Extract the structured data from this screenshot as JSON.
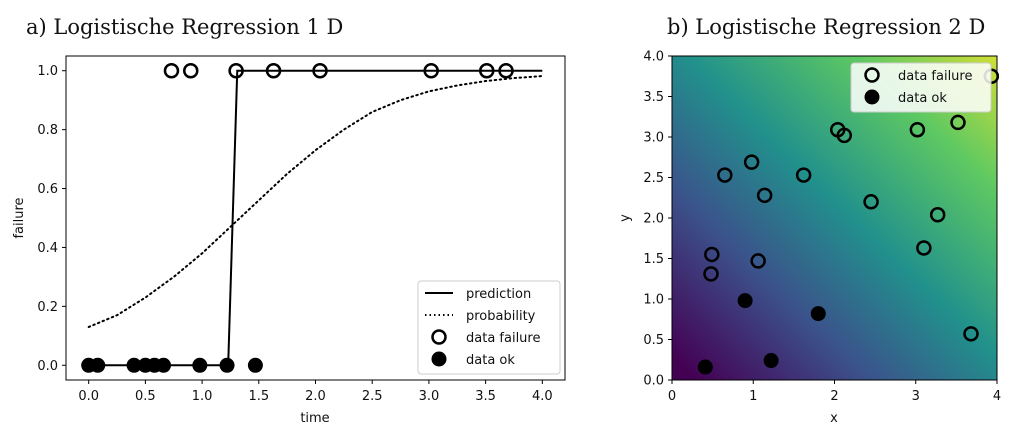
{
  "chart_data": [
    {
      "type": "scatter",
      "title": "a) Logistische Regression 1 D",
      "xlabel": "time",
      "ylabel": "failure",
      "xlim": [
        -0.2,
        4.2
      ],
      "ylim": [
        -0.05,
        1.05
      ],
      "xticks": [
        "0.0",
        "0.5",
        "1.0",
        "1.5",
        "2.0",
        "2.5",
        "3.0",
        "3.5",
        "4.0"
      ],
      "yticks": [
        "0.0",
        "0.2",
        "0.4",
        "0.6",
        "0.8",
        "1.0"
      ],
      "grid": false,
      "legend_position": "lower-right",
      "legend": [
        "prediction",
        "probability",
        "data failure",
        "data ok"
      ],
      "series": [
        {
          "name": "prediction",
          "style": "line-solid",
          "x": [
            0.0,
            1.23,
            1.31,
            4.0
          ],
          "y": [
            0.0,
            0.0,
            1.0,
            1.0
          ]
        },
        {
          "name": "probability",
          "style": "line-dotted",
          "x": [
            0.0,
            0.25,
            0.5,
            0.75,
            1.0,
            1.25,
            1.5,
            1.75,
            2.0,
            2.25,
            2.5,
            2.75,
            3.0,
            3.25,
            3.5,
            3.75,
            4.0
          ],
          "y": [
            0.13,
            0.17,
            0.23,
            0.3,
            0.38,
            0.47,
            0.56,
            0.65,
            0.73,
            0.8,
            0.86,
            0.9,
            0.93,
            0.95,
            0.965,
            0.975,
            0.982
          ]
        },
        {
          "name": "data failure",
          "style": "marker-open",
          "x": [
            0.73,
            0.9,
            1.3,
            1.63,
            2.04,
            3.02,
            3.51,
            3.68
          ],
          "y": [
            1,
            1,
            1,
            1,
            1,
            1,
            1,
            1
          ]
        },
        {
          "name": "data ok",
          "style": "marker-filled",
          "x": [
            0.0,
            0.08,
            0.4,
            0.5,
            0.58,
            0.66,
            0.98,
            1.22,
            1.47
          ],
          "y": [
            0,
            0,
            0,
            0,
            0,
            0,
            0,
            0,
            0
          ]
        }
      ]
    },
    {
      "type": "scatter",
      "title": "b) Logistische Regression 2 D",
      "xlabel": "x",
      "ylabel": "y",
      "xlim": [
        0,
        4
      ],
      "ylim": [
        0,
        4
      ],
      "xticks": [
        "0",
        "1",
        "2",
        "3",
        "4"
      ],
      "yticks": [
        "0.0",
        "0.5",
        "1.0",
        "1.5",
        "2.0",
        "2.5",
        "3.0",
        "3.5",
        "4.0"
      ],
      "grid": false,
      "background": "viridis probability heatmap",
      "colormap": [
        "#440154",
        "#3b528b",
        "#21918c",
        "#5ec962",
        "#fde725"
      ],
      "legend_position": "top-right",
      "legend": [
        "data failure",
        "data ok"
      ],
      "series": [
        {
          "name": "data failure",
          "style": "marker-open",
          "x": [
            0.48,
            0.49,
            0.65,
            0.98,
            1.06,
            1.14,
            1.62,
            2.04,
            2.12,
            2.45,
            3.02,
            3.1,
            3.27,
            3.52,
            3.68,
            3.93
          ],
          "y": [
            1.31,
            1.55,
            2.53,
            2.69,
            1.47,
            2.28,
            2.53,
            3.09,
            3.02,
            2.2,
            3.09,
            1.63,
            2.04,
            3.18,
            0.57,
            3.75
          ]
        },
        {
          "name": "data ok",
          "style": "marker-filled",
          "x": [
            0.41,
            0.9,
            1.22,
            1.8
          ],
          "y": [
            0.16,
            0.98,
            0.24,
            0.82
          ]
        }
      ]
    }
  ]
}
